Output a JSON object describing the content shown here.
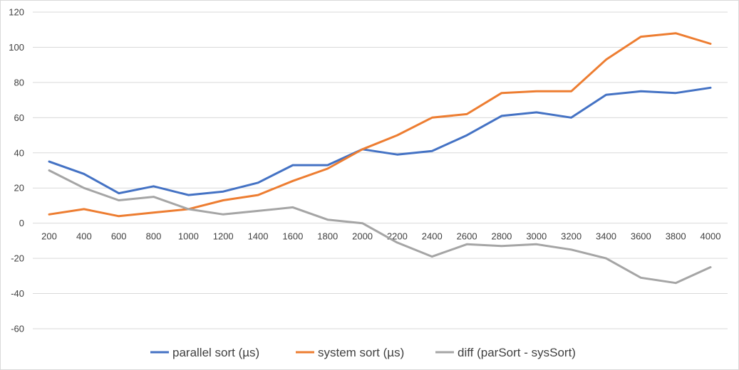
{
  "chart_data": {
    "type": "line",
    "title": "",
    "xlabel": "",
    "ylabel": "",
    "categories": [
      "200",
      "400",
      "600",
      "800",
      "1000",
      "1200",
      "1400",
      "1600",
      "1800",
      "2000",
      "2200",
      "2400",
      "2600",
      "2800",
      "3000",
      "3200",
      "3400",
      "3600",
      "3800",
      "4000"
    ],
    "ylim": [
      -60,
      120
    ],
    "yticks": [
      "-60",
      "-40",
      "-20",
      "0",
      "20",
      "40",
      "60",
      "80",
      "100",
      "120"
    ],
    "grid": true,
    "legend_position": "bottom",
    "series": [
      {
        "name": "parallel sort (µs)",
        "color": "#4472c4",
        "values": [
          35,
          28,
          17,
          21,
          16,
          18,
          23,
          33,
          33,
          42,
          39,
          41,
          50,
          61,
          63,
          60,
          73,
          75,
          74,
          77
        ]
      },
      {
        "name": "system sort (µs)",
        "color": "#ed7d31",
        "values": [
          5,
          8,
          4,
          6,
          8,
          13,
          16,
          24,
          31,
          42,
          50,
          60,
          62,
          74,
          75,
          75,
          93,
          106,
          108,
          102
        ]
      },
      {
        "name": "diff (parSort - sysSort)",
        "color": "#a5a5a5",
        "values": [
          30,
          20,
          13,
          15,
          8,
          5,
          7,
          9,
          2,
          0,
          -11,
          -19,
          -12,
          -13,
          -12,
          -15,
          -20,
          -31,
          -34,
          -25
        ]
      }
    ]
  }
}
